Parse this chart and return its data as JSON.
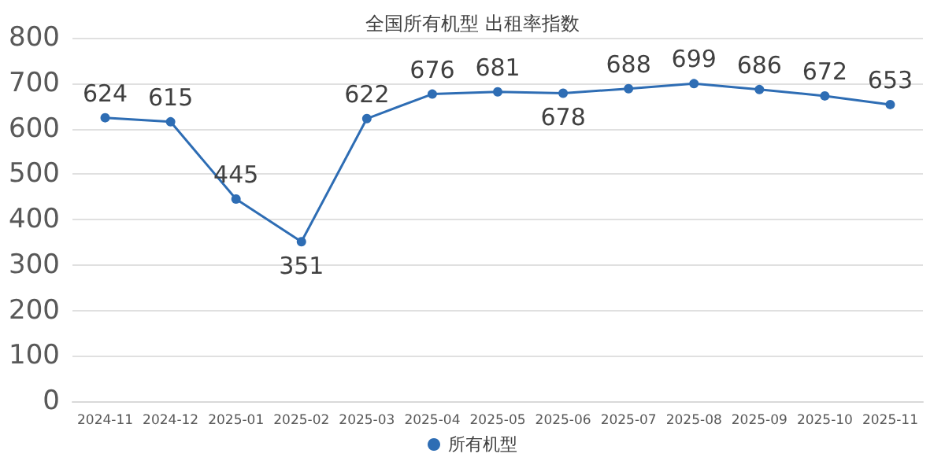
{
  "chart_data": {
    "type": "line",
    "title": "全国所有机型 出租率指数",
    "categories": [
      "2024-11",
      "2024-12",
      "2025-01",
      "2025-02",
      "2025-03",
      "2025-04",
      "2025-05",
      "2025-06",
      "2025-07",
      "2025-08",
      "2025-09",
      "2025-10",
      "2025-11"
    ],
    "series": [
      {
        "name": "所有机型",
        "color": "#2e6db4",
        "values": [
          624,
          615,
          445,
          351,
          622,
          676,
          681,
          678,
          688,
          699,
          686,
          672,
          653
        ]
      }
    ],
    "ylim": [
      0,
      800
    ],
    "yticks": [
      0,
      100,
      200,
      300,
      400,
      500,
      600,
      700,
      800
    ],
    "grid": "y",
    "legend": "bottom",
    "marker": "circle",
    "data_labels": true
  }
}
